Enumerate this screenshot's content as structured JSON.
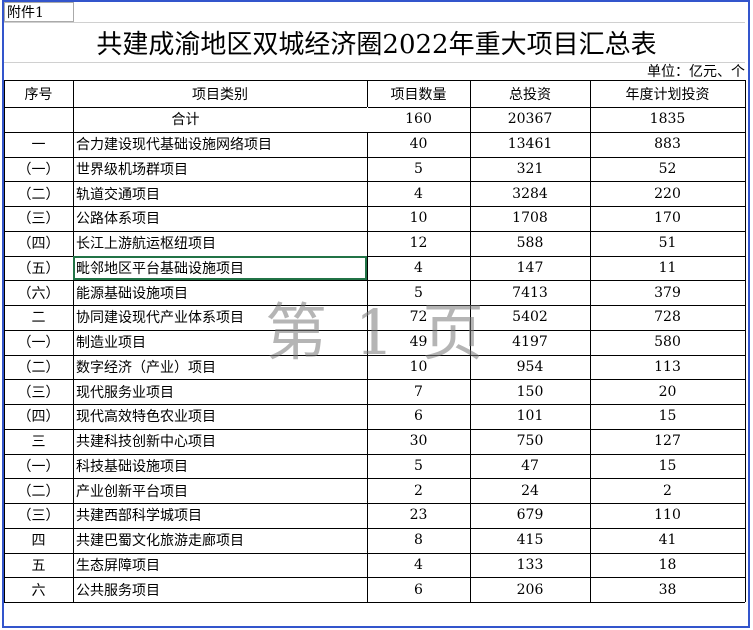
{
  "header": {
    "attachment": "附件1",
    "title": "共建成渝地区双城经济圈2022年重大项目汇总表",
    "unit": "单位：亿元、个"
  },
  "table": {
    "columns": [
      "序号",
      "项目类别",
      "项目数量",
      "总投资",
      "年度计划投资"
    ],
    "total": [
      "合计",
      160,
      20367,
      1835
    ],
    "rows": [
      [
        "一",
        "合力建设现代基础设施网络项目",
        40,
        13461,
        883
      ],
      [
        "（一）",
        "世界级机场群项目",
        5,
        321,
        52
      ],
      [
        "（二）",
        "轨道交通项目",
        4,
        3284,
        220
      ],
      [
        "（三）",
        "公路体系项目",
        10,
        1708,
        170
      ],
      [
        "（四）",
        "长江上游航运枢纽项目",
        12,
        588,
        51
      ],
      [
        "（五）",
        "毗邻地区平台基础设施项目",
        4,
        147,
        11
      ],
      [
        "（六）",
        "能源基础设施项目",
        5,
        7413,
        379
      ],
      [
        "二",
        "协同建设现代产业体系项目",
        72,
        5402,
        728
      ],
      [
        "（一）",
        "制造业项目",
        49,
        4197,
        580
      ],
      [
        "（二）",
        "数字经济（产业）项目",
        10,
        954,
        113
      ],
      [
        "（三）",
        "现代服务业项目",
        7,
        150,
        20
      ],
      [
        "（四）",
        "现代高效特色农业项目",
        6,
        101,
        15
      ],
      [
        "三",
        "共建科技创新中心项目",
        30,
        750,
        127
      ],
      [
        "（一）",
        "科技基础设施项目",
        5,
        47,
        15
      ],
      [
        "（二）",
        "产业创新平台项目",
        2,
        24,
        2
      ],
      [
        "（三）",
        "共建西部科学城项目",
        23,
        679,
        110
      ],
      [
        "四",
        "共建巴蜀文化旅游走廊项目",
        8,
        415,
        41
      ],
      [
        "五",
        "生态屏障项目",
        4,
        133,
        18
      ],
      [
        "六",
        "公共服务项目",
        6,
        206,
        38
      ]
    ]
  },
  "watermark": "第 1 页"
}
